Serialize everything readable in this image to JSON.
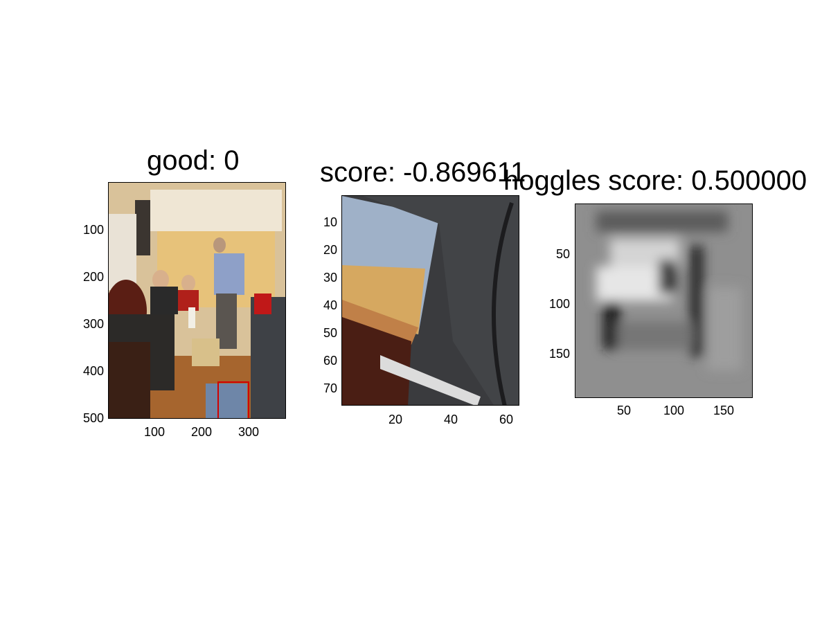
{
  "panels": [
    {
      "id": "photo",
      "title": "good: 0",
      "x_ticks": [
        "100",
        "200",
        "300"
      ],
      "y_ticks": [
        "100",
        "200",
        "300",
        "400",
        "500"
      ],
      "image_description_colors": {
        "wall": "#e9d6b3",
        "floor": "#a6652e",
        "highlight_box": "#d00000"
      }
    },
    {
      "id": "crop",
      "title": "score: -0.869611",
      "x_ticks": [
        "20",
        "40",
        "60"
      ],
      "y_ticks": [
        "10",
        "20",
        "30",
        "40",
        "50",
        "60",
        "70"
      ]
    },
    {
      "id": "hoggles",
      "title": "hoggles score: 0.500000",
      "x_ticks": [
        "50",
        "100",
        "150"
      ],
      "y_ticks": [
        "50",
        "100",
        "150"
      ]
    }
  ]
}
